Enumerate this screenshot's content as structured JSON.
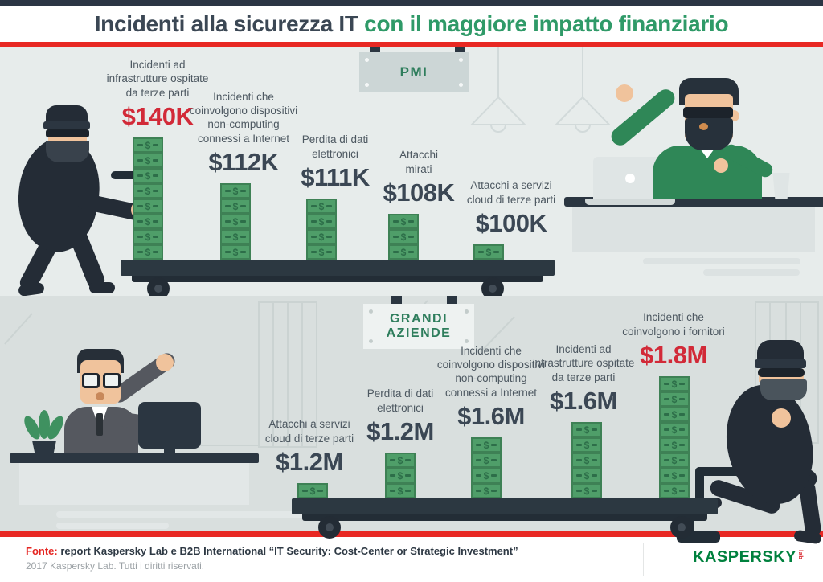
{
  "title": {
    "part_dark": "Incidenti alla sicurezza IT",
    "part_green": " con il maggiore impatto finanziario"
  },
  "sections": {
    "pmi": {
      "label": "PMI"
    },
    "enterprise": {
      "label": "GRANDI\nAZIENDE"
    }
  },
  "chart_data": [
    {
      "type": "bar",
      "group": "PMI",
      "title": "Incidenti alla sicurezza IT con il maggiore impatto finanziario",
      "unit": "USD",
      "categories": [
        "Incidenti ad\ninfrastrutture ospitate\nda terze parti",
        "Incidenti che\ncoinvolgono dispositivi\nnon-computing\nconnessi a Internet",
        "Perdita di dati\nelettronici",
        "Attacchi\nmirati",
        "Attacchi a servizi\ncloud di terze parti"
      ],
      "values_usd": [
        140000,
        112000,
        111000,
        108000,
        100000
      ],
      "value_labels": [
        "$140K",
        "$112K",
        "$111K",
        "$108K",
        "$100K"
      ],
      "stack_units": [
        8,
        5,
        4,
        3,
        1
      ],
      "highlight_index": 0
    },
    {
      "type": "bar",
      "group": "GRANDI AZIENDE",
      "title": "Incidenti alla sicurezza IT con il maggiore impatto finanziario",
      "unit": "USD",
      "categories": [
        "Attacchi a servizi\ncloud di terze parti",
        "Perdita di dati\nelettronici",
        "Incidenti che\ncoinvolgono dispositivi\nnon-computing\nconnessi a Internet",
        "Incidenti ad\ninfrastrutture ospitate\nda terze parti",
        "Incidenti che\ncoinvolgono i fornitori"
      ],
      "values_usd": [
        1200000,
        1200000,
        1600000,
        1600000,
        1800000
      ],
      "value_labels": [
        "$1.2M",
        "$1.2M",
        "$1.6M",
        "$1.6M",
        "$1.8M"
      ],
      "stack_units": [
        1,
        3,
        4,
        5,
        8
      ],
      "highlight_index": 4
    }
  ],
  "footer": {
    "source_prefix": "Fonte:",
    "source_text": " report Kaspersky Lab e B2B International “IT Security: Cost-Center or Strategic Investment”",
    "copyright": "2017 Kaspersky Lab. Tutti i diritti riservati.",
    "logo_brand": "KASPERSKY",
    "logo_suffix": "lab"
  },
  "colors": {
    "accent_red": "#e82823",
    "value_red": "#d22a38",
    "title_green": "#2f9a68",
    "money_green": "#4f9e69",
    "dark_navy": "#2b3641",
    "bg_top": "#e7eceb",
    "bg_bottom": "#d9dfde"
  }
}
